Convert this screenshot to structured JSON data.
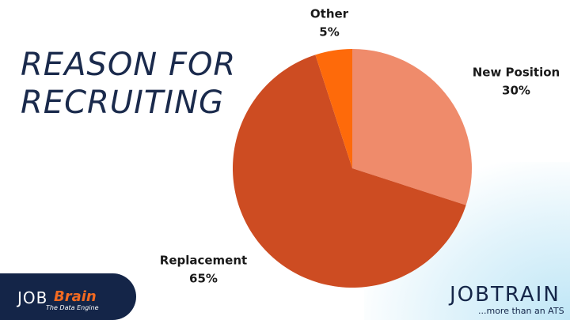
{
  "chart_data": {
    "type": "pie",
    "title": "REASON FOR RECRUITING",
    "categories": [
      "New Position",
      "Replacement",
      "Other"
    ],
    "values": [
      30,
      65,
      5
    ],
    "value_labels": [
      "30%",
      "65%",
      "5%"
    ],
    "colors": [
      "#ef8b6b",
      "#cd4c22",
      "#fe6a0a"
    ]
  },
  "logos": {
    "left": {
      "mark": "JOB",
      "name": "Brain",
      "tagline": "The Data Engine"
    },
    "right": {
      "name": "JOBTRAIN",
      "tagline": "...more than an ATS"
    }
  }
}
